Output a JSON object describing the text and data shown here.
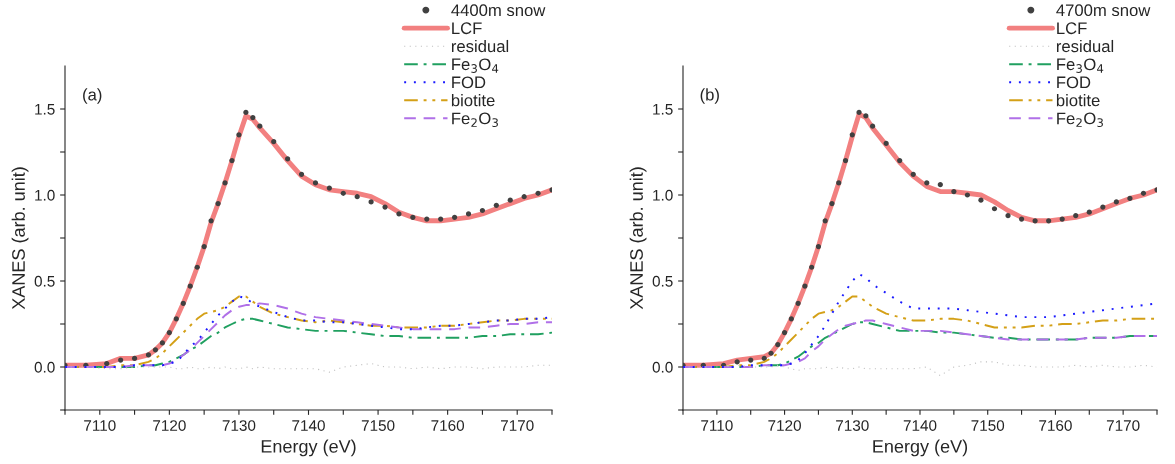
{
  "chart_data": [
    {
      "type": "line",
      "xlabel": "Energy (eV)",
      "ylabel": "XANES (arb. unit)",
      "annotations": [
        "(a)"
      ],
      "x": [
        7105,
        7108,
        7111,
        7113,
        7115,
        7117,
        7118,
        7119,
        7120,
        7121,
        7122,
        7123,
        7124,
        7125,
        7126,
        7127,
        7128,
        7129,
        7130,
        7131,
        7132,
        7133,
        7135,
        7137,
        7139,
        7141,
        7143,
        7145,
        7147,
        7149,
        7151,
        7153,
        7155,
        7157,
        7159,
        7161,
        7163,
        7165,
        7167,
        7169,
        7171,
        7173,
        7175
      ],
      "xlim": [
        7105,
        7175
      ],
      "ylim": [
        -0.25,
        1.75
      ],
      "xticks": [
        {
          "value": 7105,
          "label": null
        },
        7110,
        {
          "value": 7115,
          "label": null
        },
        7120,
        {
          "value": 7125,
          "label": null
        },
        7130,
        {
          "value": 7135,
          "label": null
        },
        7140,
        {
          "value": 7145,
          "label": null
        },
        7150,
        {
          "value": 7155,
          "label": null
        },
        7160,
        {
          "value": 7165,
          "label": null
        },
        7170,
        {
          "value": 7175,
          "label": null
        }
      ],
      "yticks": [
        {
          "value": -0.25,
          "label": null
        },
        {
          "value": 0,
          "label": "0.0"
        },
        {
          "value": 0.25,
          "label": null
        },
        {
          "value": 0.5,
          "label": "0.5"
        },
        {
          "value": 0.75,
          "label": null
        },
        {
          "value": 1.0,
          "label": "1.0"
        },
        {
          "value": 1.25,
          "label": null
        },
        {
          "value": 1.5,
          "label": "1.5"
        }
      ],
      "grid": false,
      "legend": "top right",
      "series": [
        {
          "name": "4400m snow",
          "type": "scatter",
          "marker": "circle",
          "color": "#404040",
          "values": [
            0.01,
            0.01,
            0.02,
            0.04,
            0.05,
            0.07,
            0.1,
            0.14,
            0.2,
            0.28,
            0.37,
            0.47,
            0.58,
            0.7,
            0.85,
            0.95,
            1.07,
            1.2,
            1.35,
            1.48,
            1.45,
            1.4,
            1.31,
            1.21,
            1.12,
            1.07,
            1.04,
            1.01,
            0.99,
            0.96,
            0.93,
            0.89,
            0.87,
            0.86,
            0.86,
            0.87,
            0.89,
            0.91,
            0.94,
            0.97,
            0.99,
            1.01,
            1.03
          ]
        },
        {
          "name": "LCF",
          "line_style": "solid",
          "color": "#f28080",
          "values": [
            0.01,
            0.01,
            0.02,
            0.05,
            0.05,
            0.07,
            0.1,
            0.14,
            0.2,
            0.28,
            0.37,
            0.47,
            0.58,
            0.7,
            0.84,
            0.95,
            1.07,
            1.2,
            1.34,
            1.46,
            1.44,
            1.39,
            1.3,
            1.2,
            1.11,
            1.06,
            1.03,
            1.02,
            1.01,
            0.99,
            0.95,
            0.9,
            0.87,
            0.85,
            0.85,
            0.86,
            0.87,
            0.89,
            0.92,
            0.95,
            0.98,
            1.0,
            1.03
          ]
        },
        {
          "name": "residual",
          "line_style": "dotted",
          "color": "#c0c0c0",
          "values": [
            0.0,
            0.0,
            -0.01,
            -0.01,
            0.0,
            0.0,
            0.0,
            0.0,
            0.0,
            -0.01,
            -0.01,
            0.0,
            -0.01,
            -0.01,
            0.0,
            -0.01,
            0.0,
            -0.01,
            -0.01,
            0.0,
            -0.01,
            0.0,
            -0.01,
            -0.01,
            -0.01,
            -0.01,
            -0.03,
            0.0,
            0.01,
            0.02,
            0.0,
            0.0,
            -0.01,
            0.0,
            -0.01,
            0.0,
            0.0,
            -0.01,
            0.0,
            0.0,
            0.0,
            0.01,
            0.01
          ]
        },
        {
          "name": "Fe$_{3}$O$_{4}$",
          "line_style": "dashdot",
          "color": "#20a060",
          "values": [
            0.0,
            0.0,
            0.0,
            0.0,
            0.0,
            0.01,
            0.01,
            0.02,
            0.03,
            0.05,
            0.07,
            0.1,
            0.12,
            0.15,
            0.18,
            0.2,
            0.23,
            0.25,
            0.27,
            0.28,
            0.28,
            0.27,
            0.25,
            0.23,
            0.22,
            0.21,
            0.21,
            0.21,
            0.2,
            0.19,
            0.18,
            0.18,
            0.17,
            0.17,
            0.17,
            0.17,
            0.17,
            0.18,
            0.18,
            0.19,
            0.19,
            0.19,
            0.2
          ]
        },
        {
          "name": "FOD",
          "line_style": "dotted",
          "color": "#1a1aff",
          "values": [
            0.0,
            0.0,
            0.0,
            0.0,
            0.01,
            0.01,
            0.01,
            0.01,
            0.02,
            0.03,
            0.07,
            0.12,
            0.15,
            0.2,
            0.25,
            0.3,
            0.34,
            0.38,
            0.41,
            0.4,
            0.37,
            0.35,
            0.32,
            0.29,
            0.27,
            0.27,
            0.26,
            0.26,
            0.25,
            0.24,
            0.23,
            0.22,
            0.22,
            0.23,
            0.24,
            0.24,
            0.25,
            0.26,
            0.27,
            0.27,
            0.28,
            0.28,
            0.29
          ]
        },
        {
          "name": "biotite",
          "line_style": "dashdotdot",
          "color": "#d4a017",
          "values": [
            0.0,
            0.0,
            0.0,
            0.01,
            0.01,
            0.03,
            0.05,
            0.08,
            0.12,
            0.16,
            0.2,
            0.24,
            0.28,
            0.31,
            0.32,
            0.33,
            0.35,
            0.38,
            0.41,
            0.41,
            0.38,
            0.35,
            0.31,
            0.29,
            0.27,
            0.26,
            0.27,
            0.26,
            0.25,
            0.24,
            0.24,
            0.23,
            0.23,
            0.23,
            0.24,
            0.24,
            0.25,
            0.26,
            0.27,
            0.27,
            0.28,
            0.28,
            0.28
          ]
        },
        {
          "name": "Fe$_{2}$O$_{3}$",
          "line_style": "dashed",
          "color": "#b070e8",
          "values": [
            0.0,
            0.0,
            0.0,
            0.0,
            0.01,
            0.01,
            0.01,
            0.01,
            0.02,
            0.04,
            0.07,
            0.1,
            0.14,
            0.18,
            0.22,
            0.26,
            0.3,
            0.33,
            0.35,
            0.36,
            0.36,
            0.37,
            0.36,
            0.34,
            0.31,
            0.29,
            0.28,
            0.27,
            0.26,
            0.25,
            0.24,
            0.23,
            0.22,
            0.22,
            0.22,
            0.22,
            0.23,
            0.23,
            0.24,
            0.25,
            0.25,
            0.26,
            0.26
          ]
        }
      ]
    },
    {
      "type": "line",
      "xlabel": "Energy (eV)",
      "ylabel": "XANES (arb. unit)",
      "annotations": [
        "(b)"
      ],
      "x": [
        7105,
        7108,
        7111,
        7113,
        7115,
        7117,
        7118,
        7119,
        7120,
        7121,
        7122,
        7123,
        7124,
        7125,
        7126,
        7127,
        7128,
        7129,
        7130,
        7131,
        7132,
        7133,
        7135,
        7137,
        7139,
        7141,
        7143,
        7145,
        7147,
        7149,
        7151,
        7153,
        7155,
        7157,
        7159,
        7161,
        7163,
        7165,
        7167,
        7169,
        7171,
        7173,
        7175
      ],
      "xlim": [
        7105,
        7175
      ],
      "ylim": [
        -0.25,
        1.75
      ],
      "xticks": [
        {
          "value": 7105,
          "label": null
        },
        7110,
        {
          "value": 7115,
          "label": null
        },
        7120,
        {
          "value": 7125,
          "label": null
        },
        7130,
        {
          "value": 7135,
          "label": null
        },
        7140,
        {
          "value": 7145,
          "label": null
        },
        7150,
        {
          "value": 7155,
          "label": null
        },
        7160,
        {
          "value": 7165,
          "label": null
        },
        7170,
        {
          "value": 7175,
          "label": null
        }
      ],
      "yticks": [
        {
          "value": -0.25,
          "label": null
        },
        {
          "value": 0,
          "label": "0.0"
        },
        {
          "value": 0.25,
          "label": null
        },
        {
          "value": 0.5,
          "label": "0.5"
        },
        {
          "value": 0.75,
          "label": null
        },
        {
          "value": 1.0,
          "label": "1.0"
        },
        {
          "value": 1.25,
          "label": null
        },
        {
          "value": 1.5,
          "label": "1.5"
        }
      ],
      "grid": false,
      "legend": "top right",
      "series": [
        {
          "name": "4700m snow",
          "type": "scatter",
          "marker": "circle",
          "color": "#404040",
          "values": [
            0.01,
            0.01,
            0.01,
            0.03,
            0.04,
            0.05,
            0.08,
            0.13,
            0.2,
            0.28,
            0.37,
            0.47,
            0.58,
            0.7,
            0.85,
            0.95,
            1.07,
            1.2,
            1.35,
            1.48,
            1.46,
            1.4,
            1.3,
            1.2,
            1.12,
            1.07,
            1.06,
            1.02,
            1.0,
            0.97,
            0.92,
            0.88,
            0.86,
            0.85,
            0.85,
            0.86,
            0.88,
            0.9,
            0.93,
            0.96,
            0.98,
            1.01,
            1.03
          ]
        },
        {
          "name": "LCF",
          "line_style": "solid",
          "color": "#f28080",
          "values": [
            0.01,
            0.01,
            0.02,
            0.04,
            0.05,
            0.06,
            0.08,
            0.13,
            0.2,
            0.28,
            0.37,
            0.47,
            0.58,
            0.7,
            0.84,
            0.95,
            1.07,
            1.2,
            1.34,
            1.47,
            1.45,
            1.39,
            1.29,
            1.19,
            1.11,
            1.05,
            1.02,
            1.02,
            1.01,
            1.0,
            0.96,
            0.91,
            0.87,
            0.85,
            0.85,
            0.86,
            0.87,
            0.89,
            0.92,
            0.95,
            0.98,
            1.0,
            1.03
          ]
        },
        {
          "name": "residual",
          "line_style": "dotted",
          "color": "#c0c0c0",
          "values": [
            0.0,
            0.0,
            0.0,
            0.01,
            0.0,
            0.0,
            0.0,
            0.01,
            0.0,
            -0.01,
            -0.02,
            -0.01,
            -0.01,
            -0.01,
            0.0,
            -0.01,
            0.0,
            -0.01,
            -0.01,
            0.0,
            -0.01,
            -0.01,
            -0.01,
            -0.01,
            -0.01,
            0.0,
            -0.05,
            0.0,
            0.01,
            0.03,
            0.03,
            0.01,
            0.01,
            0.0,
            0.0,
            0.0,
            0.01,
            0.0,
            0.01,
            0.0,
            0.0,
            0.01,
            0.0
          ]
        },
        {
          "name": "Fe$_{3}$O$_{4}$",
          "line_style": "dashdot",
          "color": "#20a060",
          "values": [
            0.0,
            0.0,
            0.0,
            0.0,
            0.0,
            0.01,
            0.01,
            0.01,
            0.02,
            0.04,
            0.06,
            0.09,
            0.12,
            0.14,
            0.17,
            0.19,
            0.21,
            0.23,
            0.25,
            0.26,
            0.26,
            0.25,
            0.23,
            0.21,
            0.21,
            0.21,
            0.2,
            0.2,
            0.19,
            0.18,
            0.17,
            0.17,
            0.16,
            0.16,
            0.16,
            0.16,
            0.16,
            0.17,
            0.17,
            0.17,
            0.18,
            0.18,
            0.18
          ]
        },
        {
          "name": "FOD",
          "line_style": "dotted",
          "color": "#1a1aff",
          "values": [
            0.0,
            0.0,
            0.0,
            0.0,
            0.01,
            0.01,
            0.01,
            0.01,
            0.01,
            0.02,
            0.04,
            0.08,
            0.13,
            0.18,
            0.24,
            0.31,
            0.38,
            0.44,
            0.5,
            0.54,
            0.52,
            0.48,
            0.43,
            0.38,
            0.34,
            0.34,
            0.34,
            0.34,
            0.33,
            0.32,
            0.31,
            0.3,
            0.29,
            0.29,
            0.29,
            0.3,
            0.31,
            0.32,
            0.33,
            0.34,
            0.35,
            0.36,
            0.37
          ]
        },
        {
          "name": "biotite",
          "line_style": "dashdotdot",
          "color": "#d4a017",
          "values": [
            0.0,
            0.0,
            0.0,
            0.01,
            0.01,
            0.03,
            0.05,
            0.08,
            0.12,
            0.16,
            0.2,
            0.24,
            0.28,
            0.31,
            0.32,
            0.33,
            0.35,
            0.38,
            0.41,
            0.41,
            0.38,
            0.35,
            0.31,
            0.29,
            0.27,
            0.27,
            0.28,
            0.28,
            0.27,
            0.25,
            0.23,
            0.23,
            0.23,
            0.24,
            0.24,
            0.25,
            0.25,
            0.26,
            0.27,
            0.27,
            0.28,
            0.28,
            0.28
          ]
        },
        {
          "name": "Fe$_{2}$O$_{3}$",
          "line_style": "dashed",
          "color": "#b070e8",
          "values": [
            0.0,
            0.0,
            0.0,
            0.0,
            0.0,
            0.01,
            0.01,
            0.01,
            0.01,
            0.02,
            0.03,
            0.05,
            0.09,
            0.12,
            0.16,
            0.19,
            0.22,
            0.24,
            0.25,
            0.26,
            0.27,
            0.27,
            0.25,
            0.23,
            0.21,
            0.21,
            0.21,
            0.2,
            0.19,
            0.18,
            0.17,
            0.16,
            0.16,
            0.16,
            0.16,
            0.16,
            0.16,
            0.17,
            0.17,
            0.17,
            0.18,
            0.18,
            0.18
          ]
        }
      ]
    }
  ]
}
